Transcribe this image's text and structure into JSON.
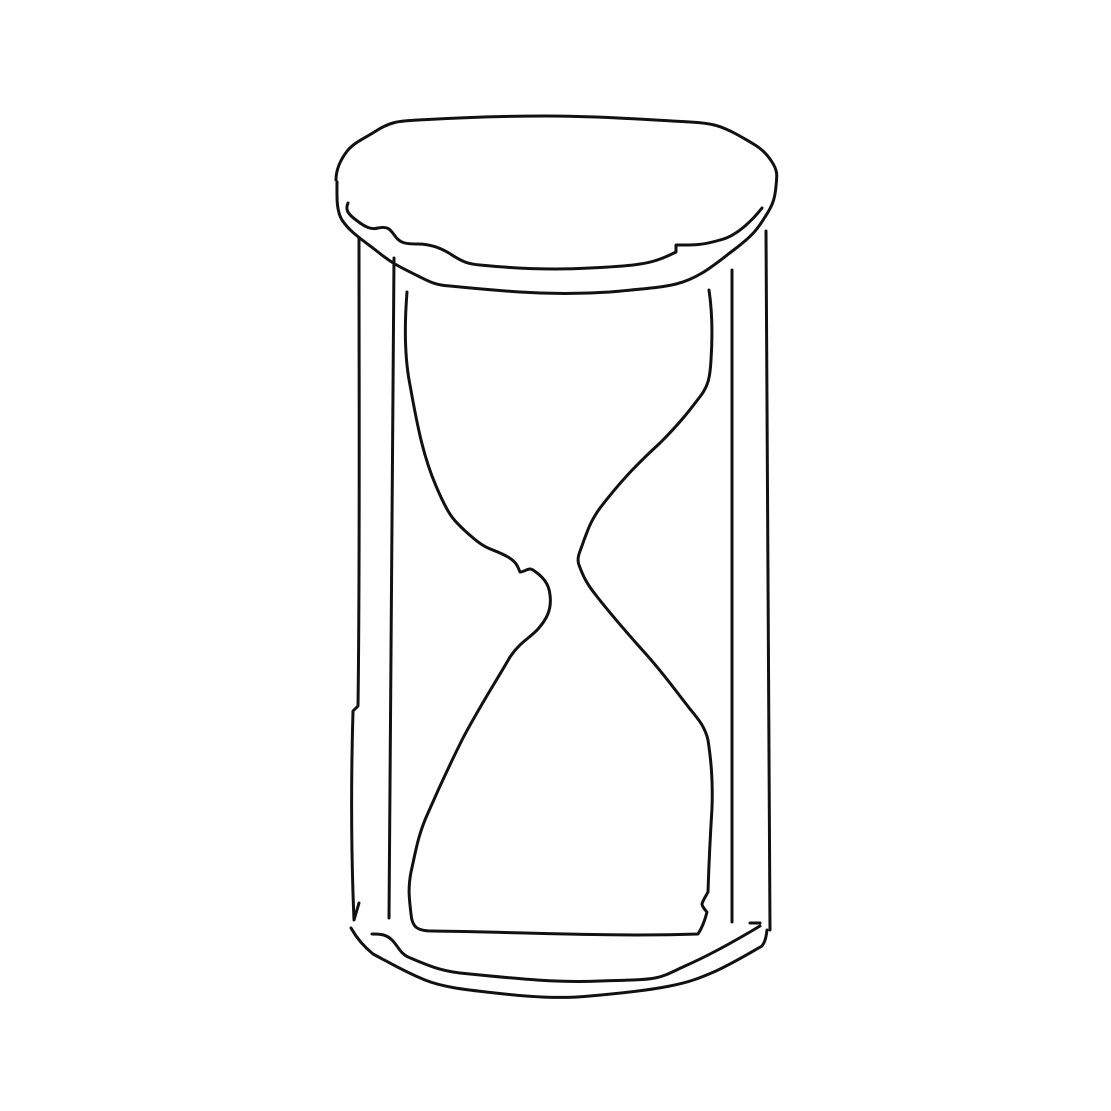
{
  "drawing": {
    "subject": "hourglass-sketch",
    "stroke_color": "#111111",
    "background_color": "#ffffff"
  }
}
